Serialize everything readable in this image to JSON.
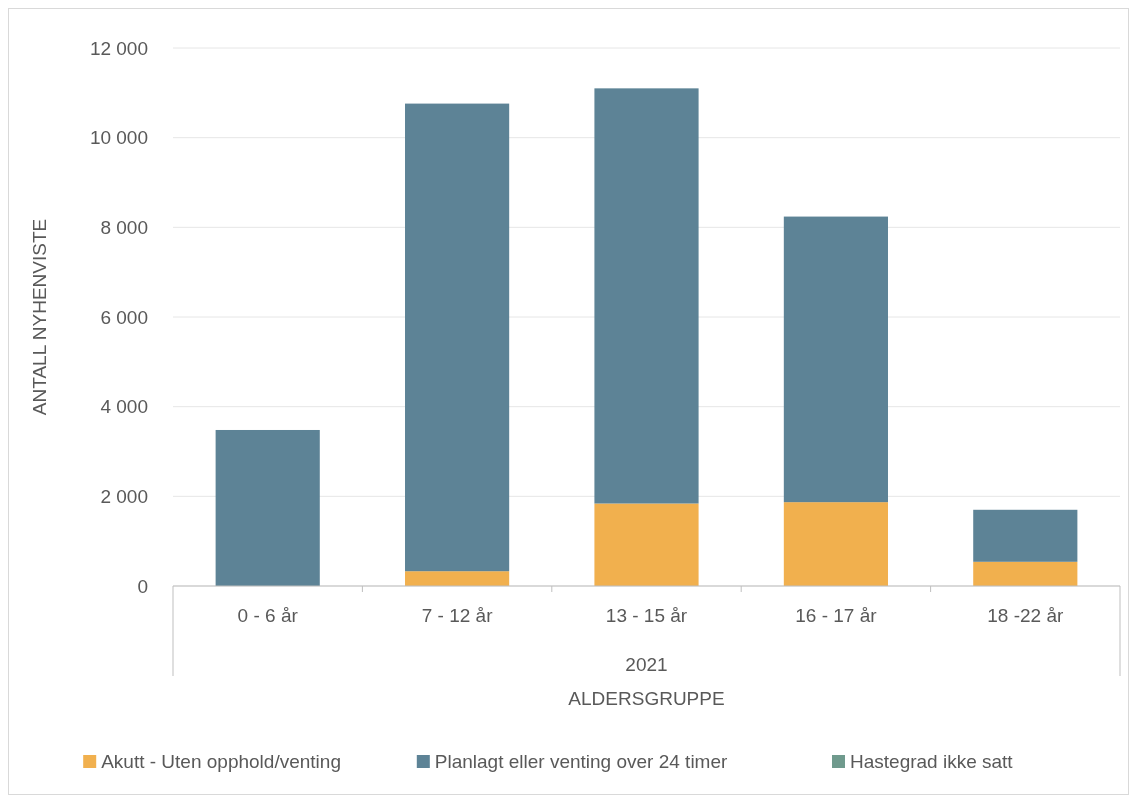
{
  "chart_data": {
    "type": "bar",
    "stacked": true,
    "ylabel": "ANTALL NYHENVISTE",
    "xlabel": "ALDERSGRUPPE",
    "annotations": [
      "2021"
    ],
    "categories": [
      "0 - 6 år",
      "7 - 12 år",
      "13 - 15 år",
      "16 - 17 år",
      "18 -22 år"
    ],
    "series": [
      {
        "name": "Akutt - Uten opphold/venting",
        "color": "#f1b04e",
        "values": [
          0,
          330,
          1840,
          1870,
          540
        ]
      },
      {
        "name": "Planlagt eller venting over 24 timer",
        "color": "#5d8396",
        "values": [
          3480,
          10430,
          9260,
          6370,
          1160
        ]
      },
      {
        "name": "Hastegrad ikke satt",
        "color": "#6f9a8d",
        "values": [
          0,
          0,
          0,
          0,
          0
        ]
      }
    ],
    "ylim": [
      0,
      12000
    ],
    "yticks": [
      {
        "value": 0,
        "label": "0"
      },
      {
        "value": 2000,
        "label": "2 000"
      },
      {
        "value": 4000,
        "label": "4 000"
      },
      {
        "value": 6000,
        "label": "6 000"
      },
      {
        "value": 8000,
        "label": "8 000"
      },
      {
        "value": 10000,
        "label": "10 000"
      },
      {
        "value": 12000,
        "label": "12 000"
      }
    ],
    "grid": "y",
    "legend": "bottom"
  }
}
